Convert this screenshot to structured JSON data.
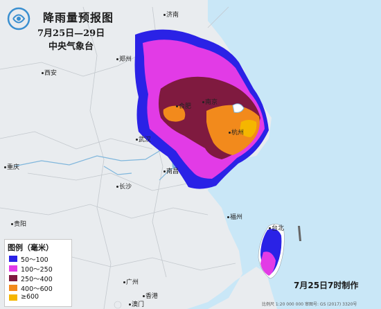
{
  "title": "降雨量预报图",
  "date_range": "7月25日—29日",
  "organization": "中央气象台",
  "legend": {
    "title": "图例（毫米）",
    "items": [
      {
        "label": "50～100",
        "color": "#2a22e6"
      },
      {
        "label": "100～250",
        "color": "#e23be6"
      },
      {
        "label": "250～400",
        "color": "#7f1a3f"
      },
      {
        "label": "400～600",
        "color": "#f28a1c"
      },
      {
        "label": "≥600",
        "color": "#f5b600"
      }
    ]
  },
  "cities": {
    "jinan": "济南",
    "zhengzhou": "郑州",
    "xian": "西安",
    "hefei": "合肥",
    "nanjing": "南京",
    "hangzhou": "杭州",
    "wuhan": "武汉",
    "nanchang": "南昌",
    "changsha": "长沙",
    "chongqing": "重庆",
    "guiyang": "贵阳",
    "fuzhou": "福州",
    "taibei": "台北",
    "guangzhou": "广州",
    "xianggang": "香港",
    "aomen": "澳门"
  },
  "made_time": "7月25日7时制作",
  "scale_note": "比例尺 1:20 000 000    审图号: GS (2017) 3320号",
  "colors": {
    "sea": "#c9e7f7",
    "land": "#e9ecef"
  }
}
